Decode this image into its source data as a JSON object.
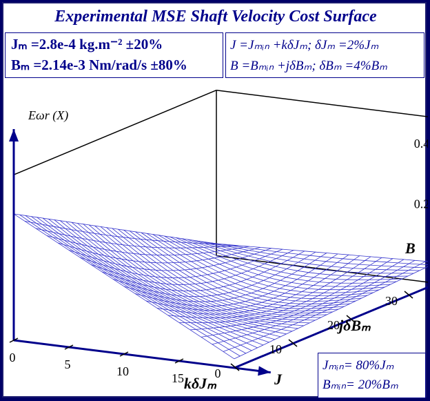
{
  "title": "Experimental MSE Shaft Velocity Cost Surface",
  "info_left": {
    "line1": "Jₘ =2.8e-4 kg.m⁻² ±20%",
    "line2": "Bₘ =2.14e-3 Nm/rad/s ±80%"
  },
  "info_right": {
    "line1": "J =Jₘᵢₙ +kδJₘ; δJₘ =2%Jₘ",
    "line2": "B =Bₘᵢₙ +jδBₘ; δBₘ =4%Bₘ"
  },
  "info_bottom": {
    "line1": "Jₘᵢₙ= 80%Jₘ",
    "line2": "Bₘᵢₙ= 20%Bₘ"
  },
  "colors": {
    "accent": "#00008b",
    "mesh": "#3333cc",
    "frame": "#000066"
  },
  "chart_data": {
    "type": "surface",
    "z_label": "Eωr (X)",
    "x_axis_name": "J",
    "x_axis_label": "kδJₘ",
    "y_axis_name": "B",
    "y_axis_label": "jδBₘ",
    "k_ticks": [
      0,
      5,
      10,
      15
    ],
    "j_ticks": [
      0,
      10,
      20,
      30
    ],
    "z_ticks": [
      0.2,
      0.4
    ],
    "k_range": [
      0,
      20
    ],
    "j_range": [
      0,
      35
    ],
    "z_range": [
      0,
      0.55
    ],
    "surface": {
      "description_k_values": [
        0,
        5,
        10,
        15,
        20
      ],
      "corner_values": {
        "k0_j0": 0.42,
        "k20_j0": 0.03,
        "k0_j35": 0.04,
        "k20_j35": 0.07
      },
      "minimum_approx": 0.0
    }
  }
}
